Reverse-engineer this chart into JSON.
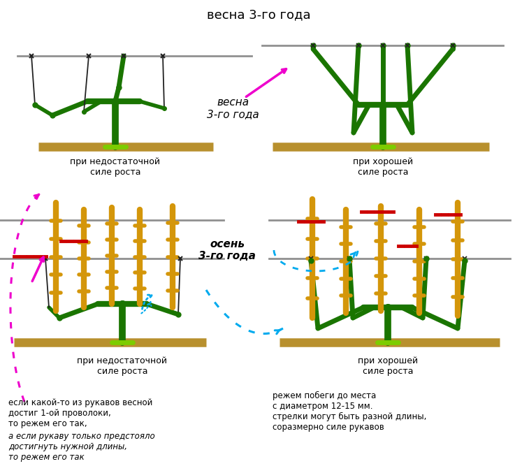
{
  "bg_color": "#ffffff",
  "dark_green": "#1a7500",
  "light_green": "#7dcc00",
  "orange": "#d4960a",
  "red_dash": "#cc0000",
  "wire_color": "#909090",
  "ground_color": "#b8902e",
  "pink": "#ee00cc",
  "blue": "#00aaee",
  "title_top": "весна 3-го года",
  "label_spring_weak": "при недостаточной\nсиле роста",
  "label_spring_good": "при хорошей\nсиле роста",
  "label_spring_mid": "весна\n3-го года",
  "label_autumn": "осень\n3-го года",
  "label_autumn_weak": "при недостаточной\nсиле роста",
  "label_autumn_good": "при хорошей\nсиле роста",
  "text_left1": "если какой-то из рукавов весной\nдостиг 1-ой проволоки,\nто режем его так,",
  "text_left2": "а если рукаву только предстояло\nдостигнуть нужной длины,\nто режем его так",
  "text_right": "режем побеги до места\nс диаметром 12-15 мм.\nстрелки могут быть разной длины,\nсоразмерно силе рукавов"
}
